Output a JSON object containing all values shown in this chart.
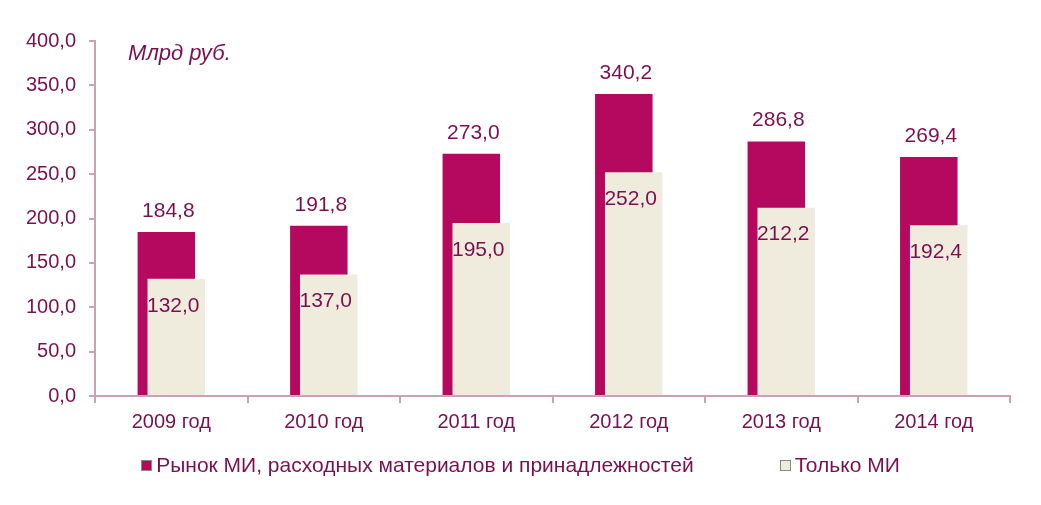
{
  "chart_data": {
    "type": "bar",
    "ylabel": "Млрд руб.",
    "categories": [
      "2009 год",
      "2010 год",
      "2011 год",
      "2012 год",
      "2013 год",
      "2014 год"
    ],
    "series": [
      {
        "name": "Рынок МИ, расходных материалов и принадлежностей",
        "color": "#b5095f",
        "values": [
          184.8,
          191.8,
          273.0,
          340.2,
          286.8,
          269.4
        ],
        "value_labels": [
          "184,8",
          "191,8",
          "273,0",
          "340,2",
          "286,8",
          "269,4"
        ]
      },
      {
        "name": "Только МИ",
        "color": "#efecdd",
        "values": [
          132.0,
          137.0,
          195.0,
          252.0,
          212.2,
          192.4
        ],
        "value_labels": [
          "132,0",
          "137,0",
          "195,0",
          "252,0",
          "212,2",
          "192,4"
        ]
      }
    ],
    "ylim": [
      0,
      400
    ],
    "yticks": [
      {
        "value": 0,
        "label": "0,0"
      },
      {
        "value": 50,
        "label": "50,0"
      },
      {
        "value": 100,
        "label": "100,0"
      },
      {
        "value": 150,
        "label": "150,0"
      },
      {
        "value": 200,
        "label": "200,0"
      },
      {
        "value": 250,
        "label": "250,0"
      },
      {
        "value": 300,
        "label": "300,0"
      },
      {
        "value": 350,
        "label": "350,0"
      },
      {
        "value": 400,
        "label": "400,0"
      }
    ],
    "grid": false,
    "legend": "bottom"
  }
}
